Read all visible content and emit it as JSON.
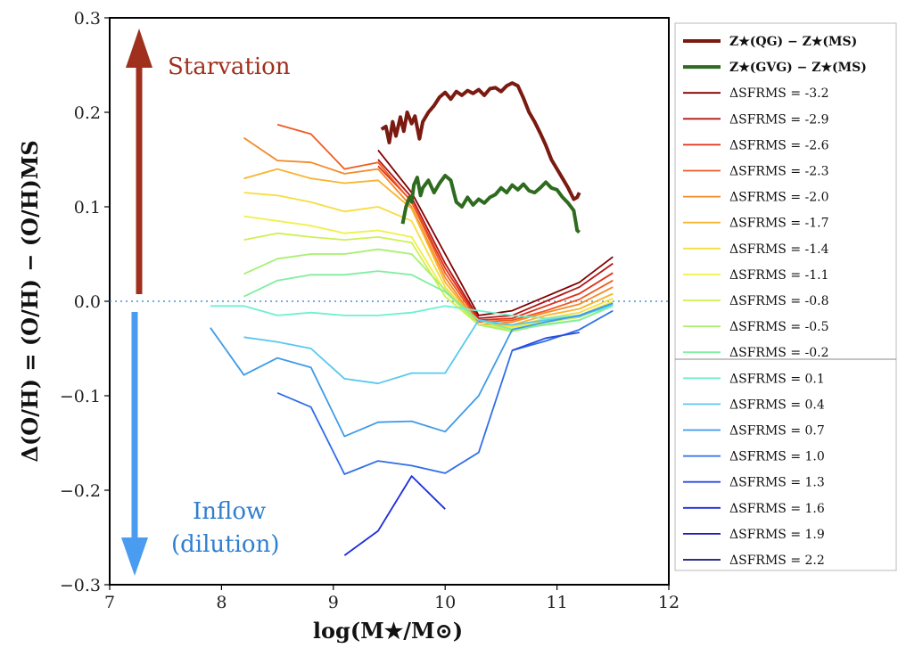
{
  "chart_data": {
    "type": "line",
    "xlabel": "log(M★/M⊙)",
    "ylabel": "Δ(O/H) = (O/H) − (O/H)MS",
    "xlim": [
      7,
      12
    ],
    "ylim": [
      -0.3,
      0.3
    ],
    "xticks": [
      "7",
      "8",
      "9",
      "10",
      "11",
      "12"
    ],
    "yticks": [
      "−0.3",
      "−0.2",
      "−0.1",
      "0.0",
      "0.1",
      "0.2",
      "0.3"
    ],
    "grid": false,
    "legend_position": "outside-right",
    "annotations": {
      "starvation": {
        "text": "Starvation",
        "color": "#a0301e"
      },
      "inflow": {
        "text": "Inflow",
        "color": "#2f7fd0"
      },
      "dilution": {
        "text": "(dilution)",
        "color": "#2f7fd0"
      }
    },
    "zero_line": {
      "y": 0.0,
      "style": "dotted",
      "color": "#4a90d9"
    },
    "stellar_series": [
      {
        "name": "Z★(QG) − Z★(MS)",
        "color": "#7a1a10",
        "x": [
          9.43,
          9.47,
          9.5,
          9.53,
          9.56,
          9.6,
          9.63,
          9.66,
          9.7,
          9.73,
          9.77,
          9.8,
          9.85,
          9.9,
          9.95,
          10.0,
          10.05,
          10.1,
          10.15,
          10.2,
          10.25,
          10.3,
          10.35,
          10.4,
          10.45,
          10.5,
          10.55,
          10.6,
          10.65,
          10.7,
          10.75,
          10.8,
          10.85,
          10.9,
          10.95,
          11.0,
          11.05,
          11.1,
          11.15,
          11.18,
          11.2
        ],
        "y": [
          0.182,
          0.185,
          0.168,
          0.19,
          0.175,
          0.195,
          0.18,
          0.2,
          0.188,
          0.196,
          0.172,
          0.19,
          0.2,
          0.207,
          0.216,
          0.221,
          0.214,
          0.222,
          0.218,
          0.223,
          0.22,
          0.224,
          0.218,
          0.225,
          0.226,
          0.222,
          0.228,
          0.231,
          0.228,
          0.215,
          0.2,
          0.19,
          0.178,
          0.165,
          0.15,
          0.14,
          0.13,
          0.12,
          0.108,
          0.11,
          0.115
        ]
      },
      {
        "name": "Z★(GVG) − Z★(MS)",
        "color": "#2e6b1f",
        "x": [
          9.62,
          9.65,
          9.68,
          9.7,
          9.72,
          9.75,
          9.78,
          9.8,
          9.85,
          9.9,
          9.95,
          10.0,
          10.05,
          10.1,
          10.15,
          10.2,
          10.25,
          10.3,
          10.35,
          10.4,
          10.45,
          10.5,
          10.55,
          10.6,
          10.65,
          10.7,
          10.75,
          10.8,
          10.85,
          10.9,
          10.95,
          11.0,
          11.05,
          11.1,
          11.15,
          11.18,
          11.2
        ],
        "y": [
          0.082,
          0.1,
          0.11,
          0.105,
          0.123,
          0.131,
          0.112,
          0.12,
          0.128,
          0.115,
          0.125,
          0.133,
          0.128,
          0.105,
          0.1,
          0.11,
          0.102,
          0.108,
          0.104,
          0.11,
          0.113,
          0.12,
          0.115,
          0.123,
          0.118,
          0.124,
          0.117,
          0.115,
          0.12,
          0.126,
          0.12,
          0.118,
          0.11,
          0.104,
          0.096,
          0.075,
          0.073
        ]
      }
    ],
    "series": [
      {
        "name": "ΔSFRMS = -3.2",
        "label": "-3.2",
        "color": "#800000",
        "x": [
          9.4,
          9.7,
          10.0,
          10.3,
          10.6,
          10.9,
          11.2,
          11.5
        ],
        "y": [
          0.16,
          0.115,
          0.05,
          -0.015,
          -0.01,
          0.005,
          0.02,
          0.047
        ]
      },
      {
        "name": "ΔSFRMS = -2.9",
        "label": "-2.9",
        "color": "#b01818",
        "x": [
          9.4,
          9.7,
          10.0,
          10.3,
          10.6,
          10.9,
          11.2,
          11.5
        ],
        "y": [
          0.15,
          0.11,
          0.04,
          -0.018,
          -0.015,
          0.0,
          0.015,
          0.04
        ]
      },
      {
        "name": "ΔSFRMS = -2.6",
        "label": "-2.6",
        "color": "#e03018",
        "x": [
          9.4,
          9.7,
          10.0,
          10.3,
          10.6,
          10.9,
          11.2,
          11.5
        ],
        "y": [
          0.143,
          0.106,
          0.035,
          -0.02,
          -0.018,
          -0.005,
          0.008,
          0.03
        ]
      },
      {
        "name": "ΔSFRMS = -2.3",
        "label": "-2.3",
        "color": "#f05a20",
        "x": [
          8.5,
          8.8,
          9.1,
          9.4,
          9.7,
          10.0,
          10.3,
          10.6,
          10.9,
          11.2,
          11.5
        ],
        "y": [
          0.187,
          0.177,
          0.14,
          0.147,
          0.105,
          0.03,
          -0.022,
          -0.02,
          -0.01,
          0.002,
          0.022
        ]
      },
      {
        "name": "ΔSFRMS = -2.0",
        "label": "-2.0",
        "color": "#f48a28",
        "x": [
          8.2,
          8.5,
          8.8,
          9.1,
          9.4,
          9.7,
          10.0,
          10.3,
          10.6,
          10.9,
          11.2,
          11.5
        ],
        "y": [
          0.173,
          0.149,
          0.147,
          0.135,
          0.14,
          0.1,
          0.025,
          -0.025,
          -0.022,
          -0.012,
          -0.003,
          0.015
        ]
      },
      {
        "name": "ΔSFRMS = -1.7",
        "label": "-1.7",
        "color": "#f8b430",
        "x": [
          8.2,
          8.5,
          8.8,
          9.1,
          9.4,
          9.7,
          10.0,
          10.3,
          10.6,
          10.9,
          11.2,
          11.5
        ],
        "y": [
          0.13,
          0.14,
          0.13,
          0.125,
          0.128,
          0.098,
          0.02,
          -0.025,
          -0.025,
          -0.015,
          -0.008,
          0.008
        ]
      },
      {
        "name": "ΔSFRMS = -1.4",
        "label": "-1.4",
        "color": "#f8dc40",
        "x": [
          8.2,
          8.5,
          8.8,
          9.1,
          9.4,
          9.7,
          10.0,
          10.3,
          10.6,
          10.9,
          11.2,
          11.5
        ],
        "y": [
          0.115,
          0.112,
          0.105,
          0.095,
          0.1,
          0.085,
          0.015,
          -0.025,
          -0.027,
          -0.018,
          -0.012,
          0.003
        ]
      },
      {
        "name": "ΔSFRMS = -1.1",
        "label": "-1.1",
        "color": "#f0f048",
        "x": [
          8.2,
          8.5,
          8.8,
          9.1,
          9.4,
          9.7,
          10.0,
          10.3,
          10.6,
          10.9,
          11.2,
          11.5
        ],
        "y": [
          0.09,
          0.085,
          0.08,
          0.072,
          0.075,
          0.068,
          0.01,
          -0.025,
          -0.028,
          -0.02,
          -0.015,
          0.0
        ]
      },
      {
        "name": "ΔSFRMS = -0.8",
        "label": "-0.8",
        "color": "#cef050",
        "x": [
          8.2,
          8.5,
          8.8,
          9.1,
          9.4,
          9.7,
          10.0,
          10.3,
          10.6,
          10.9,
          11.2,
          11.5
        ],
        "y": [
          0.065,
          0.072,
          0.068,
          0.065,
          0.068,
          0.062,
          0.005,
          -0.025,
          -0.03,
          -0.022,
          -0.017,
          -0.002
        ]
      },
      {
        "name": "ΔSFRMS = -0.5",
        "label": "-0.5",
        "color": "#a8f070",
        "x": [
          8.2,
          8.5,
          8.8,
          9.1,
          9.4,
          9.7,
          10.0,
          10.3,
          10.6,
          10.9,
          11.2,
          11.5
        ],
        "y": [
          0.029,
          0.045,
          0.05,
          0.05,
          0.055,
          0.05,
          0.012,
          -0.025,
          -0.032,
          -0.024,
          -0.02,
          -0.004
        ]
      },
      {
        "name": "ΔSFRMS = -0.2",
        "label": "-0.2",
        "color": "#80eea0",
        "x": [
          8.2,
          8.5,
          8.8,
          9.1,
          9.4,
          9.7,
          10.0,
          10.3,
          10.6,
          10.9,
          11.2,
          11.5
        ],
        "y": [
          0.005,
          0.022,
          0.028,
          0.028,
          0.032,
          0.028,
          0.01,
          -0.02,
          -0.03,
          -0.025,
          -0.02,
          -0.005
        ]
      },
      {
        "name": "ΔSFRMS = 0.1",
        "label": "0.1",
        "color": "#6ef0d0",
        "x": [
          7.9,
          8.2,
          8.5,
          8.8,
          9.1,
          9.4,
          9.7,
          10.0,
          10.3,
          10.6,
          10.9,
          11.2,
          11.5
        ],
        "y": [
          -0.005,
          -0.005,
          -0.015,
          -0.012,
          -0.015,
          -0.015,
          -0.012,
          -0.005,
          -0.01,
          -0.015,
          -0.018,
          -0.015,
          -0.005
        ]
      },
      {
        "name": "ΔSFRMS = 0.4",
        "label": "0.4",
        "color": "#58c8f0",
        "x": [
          8.2,
          8.5,
          8.8,
          9.1,
          9.4,
          9.7,
          10.0,
          10.3,
          10.6,
          10.9,
          11.2,
          11.5
        ],
        "y": [
          -0.038,
          -0.043,
          -0.05,
          -0.082,
          -0.087,
          -0.076,
          -0.076,
          -0.02,
          -0.025,
          -0.02,
          -0.016,
          -0.003
        ]
      },
      {
        "name": "ΔSFRMS = 0.7",
        "label": "0.7",
        "color": "#3f9ae8",
        "x": [
          7.9,
          8.2,
          8.5,
          8.8,
          9.1,
          9.4,
          9.7,
          10.0,
          10.3,
          10.6,
          10.9,
          11.2,
          11.5
        ],
        "y": [
          -0.028,
          -0.078,
          -0.06,
          -0.07,
          -0.143,
          -0.128,
          -0.127,
          -0.138,
          -0.1,
          -0.03,
          -0.022,
          -0.015,
          -0.002
        ]
      },
      {
        "name": "ΔSFRMS = 1.0",
        "label": "1.0",
        "color": "#2f6ee8",
        "x": [
          8.5,
          8.8,
          9.1,
          9.4,
          9.7,
          10.0,
          10.3,
          10.6,
          10.9,
          11.2,
          11.5
        ],
        "y": [
          -0.097,
          -0.112,
          -0.183,
          -0.169,
          -0.174,
          -0.182,
          -0.16,
          -0.052,
          -0.042,
          -0.03,
          -0.01
        ]
      },
      {
        "name": "ΔSFRMS = 1.3",
        "label": "1.3",
        "color": "#2a4ae0",
        "x": [
          10.6,
          10.9,
          11.2
        ],
        "y": [
          -0.052,
          -0.039,
          -0.033
        ]
      },
      {
        "name": "ΔSFRMS = 1.6",
        "label": "1.6",
        "color": "#1e2ed8",
        "x": [
          9.1,
          9.4,
          9.7,
          10.0
        ],
        "y": [
          -0.269,
          -0.243,
          -0.185,
          -0.22
        ]
      },
      {
        "name": "ΔSFRMS = 1.9",
        "label": "1.9",
        "color": "#1c1cb8",
        "x": [],
        "y": []
      },
      {
        "name": "ΔSFRMS = 2.2",
        "label": "2.2",
        "color": "#101070",
        "x": [],
        "y": []
      }
    ]
  }
}
